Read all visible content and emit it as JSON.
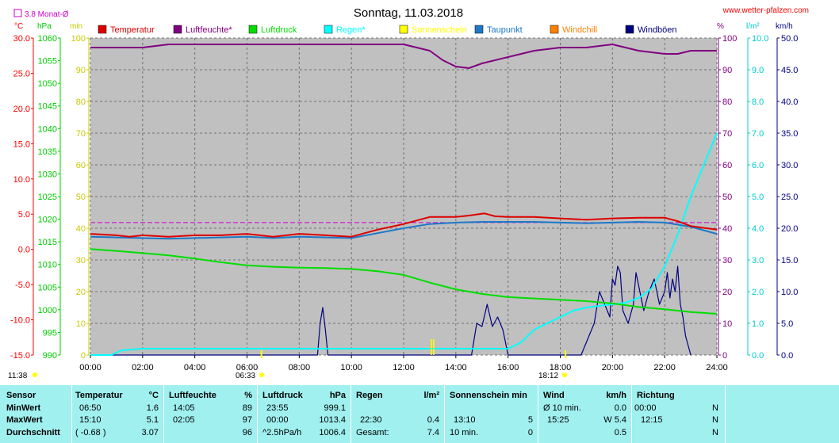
{
  "chart_data": {
    "type": "line",
    "title": "Sonntag, 11.03.2018",
    "source_label": "www.wetter-pfalzen.com",
    "monthly_avg_label": "3.8 Monat-Ø",
    "monthly_avg_temp": 3.8,
    "x_ticks": [
      "00:00",
      "02:00",
      "04:00",
      "06:00",
      "08:00",
      "10:00",
      "12:00",
      "14:00",
      "16:00",
      "18:00",
      "20:00",
      "22:00",
      "24:00"
    ],
    "sunrise": "06:33",
    "sunset": "18:12",
    "moonrise": "11:38",
    "axes": {
      "temp": {
        "unit": "°C",
        "range": [
          -15,
          30
        ],
        "ticks": [
          "30.0",
          "25.0",
          "20.0",
          "15.0",
          "10.0",
          "5.0",
          "0.0",
          "-5.0",
          "-10.0",
          "-15.0"
        ],
        "color": "#ff0000"
      },
      "pressure": {
        "unit": "hPa",
        "range": [
          990,
          1060
        ],
        "ticks": [
          "1060",
          "1055",
          "1050",
          "1045",
          "1040",
          "1035",
          "1030",
          "1025",
          "1020",
          "1015",
          "1010",
          "1005",
          "1000",
          "995",
          "990"
        ],
        "color": "#00cc00"
      },
      "minutes": {
        "unit": "min",
        "range": [
          0,
          100
        ],
        "ticks": [
          "100",
          "90",
          "80",
          "70",
          "60",
          "50",
          "40",
          "30",
          "20",
          "10",
          "0"
        ],
        "color": "#dddd00"
      },
      "humidity": {
        "unit": "%",
        "range": [
          0,
          100
        ],
        "ticks": [
          "100",
          "90",
          "80",
          "70",
          "60",
          "50",
          "40",
          "30",
          "20",
          "10",
          "0"
        ],
        "color": "#800080"
      },
      "rain": {
        "unit": "l/m²",
        "range": [
          0,
          10
        ],
        "ticks": [
          "10.0",
          "9.0",
          "8.0",
          "7.0",
          "6.0",
          "5.0",
          "4.0",
          "3.0",
          "2.0",
          "1.0",
          "0.0"
        ],
        "color": "#00cccc"
      },
      "wind": {
        "unit": "km/h",
        "range": [
          0,
          50
        ],
        "ticks": [
          "50.0",
          "45.0",
          "40.0",
          "35.0",
          "30.0",
          "25.0",
          "20.0",
          "15.0",
          "10.0",
          "5.0",
          "0.0"
        ],
        "color": "#000080"
      }
    },
    "legend": [
      {
        "name": "Temperatur",
        "color": "#dd0000"
      },
      {
        "name": "Luftfeuchte*",
        "color": "#800080"
      },
      {
        "name": "Luftdruck",
        "color": "#00dd00"
      },
      {
        "name": "Regen*",
        "color": "#00ffff"
      },
      {
        "name": "Sonnenschein",
        "color": "#ffff00"
      },
      {
        "name": "Taupunkt",
        "color": "#1e78c8"
      },
      {
        "name": "Windchill",
        "color": "#ff8000"
      },
      {
        "name": "Windböen",
        "color": "#000080"
      }
    ],
    "series": [
      {
        "name": "Temperatur",
        "axis": "temp",
        "color": "#dd0000",
        "points": [
          [
            0,
            2.2
          ],
          [
            1,
            2.0
          ],
          [
            1.5,
            1.8
          ],
          [
            2,
            2.0
          ],
          [
            3,
            1.8
          ],
          [
            4,
            2.0
          ],
          [
            5,
            2.0
          ],
          [
            6,
            2.2
          ],
          [
            7,
            1.8
          ],
          [
            8,
            2.2
          ],
          [
            9,
            2.0
          ],
          [
            10,
            1.8
          ],
          [
            11,
            2.8
          ],
          [
            12,
            3.6
          ],
          [
            13,
            4.6
          ],
          [
            14,
            4.6
          ],
          [
            14.5,
            4.8
          ],
          [
            15.1,
            5.1
          ],
          [
            15.5,
            4.7
          ],
          [
            16,
            4.6
          ],
          [
            17,
            4.6
          ],
          [
            18,
            4.4
          ],
          [
            19,
            4.2
          ],
          [
            20,
            4.4
          ],
          [
            21,
            4.5
          ],
          [
            22,
            4.5
          ],
          [
            22.5,
            4.0
          ],
          [
            23,
            3.3
          ],
          [
            24,
            2.8
          ]
        ]
      },
      {
        "name": "Taupunkt",
        "axis": "temp",
        "color": "#1e78c8",
        "points": [
          [
            0,
            1.8
          ],
          [
            1,
            1.7
          ],
          [
            2,
            1.6
          ],
          [
            3,
            1.5
          ],
          [
            4,
            1.6
          ],
          [
            5,
            1.7
          ],
          [
            6,
            1.8
          ],
          [
            7,
            1.6
          ],
          [
            8,
            1.8
          ],
          [
            9,
            1.7
          ],
          [
            10,
            1.6
          ],
          [
            11,
            2.3
          ],
          [
            12,
            3.0
          ],
          [
            13,
            3.6
          ],
          [
            14,
            3.8
          ],
          [
            15,
            3.9
          ],
          [
            16,
            3.9
          ],
          [
            17,
            3.9
          ],
          [
            18,
            3.8
          ],
          [
            19,
            3.7
          ],
          [
            20,
            3.8
          ],
          [
            21,
            3.9
          ],
          [
            22,
            3.8
          ],
          [
            23,
            3.2
          ],
          [
            24,
            2.2
          ]
        ]
      },
      {
        "name": "Luftfeuchte*",
        "axis": "humidity",
        "color": "#800080",
        "points": [
          [
            0,
            97
          ],
          [
            2,
            97
          ],
          [
            2.5,
            97.5
          ],
          [
            3,
            98
          ],
          [
            6,
            98
          ],
          [
            10,
            98
          ],
          [
            12,
            98
          ],
          [
            13,
            96
          ],
          [
            13.5,
            93
          ],
          [
            14,
            91
          ],
          [
            14.5,
            90.5
          ],
          [
            15,
            92
          ],
          [
            16,
            94
          ],
          [
            17,
            96
          ],
          [
            18,
            97
          ],
          [
            19,
            97
          ],
          [
            20,
            98
          ],
          [
            20.5,
            97
          ],
          [
            21,
            96
          ],
          [
            22,
            95
          ],
          [
            22.5,
            95
          ],
          [
            23,
            96
          ],
          [
            24,
            96
          ]
        ]
      },
      {
        "name": "Luftdruck",
        "axis": "pressure",
        "color": "#00dd00",
        "points": [
          [
            0,
            1013.4
          ],
          [
            1,
            1013
          ],
          [
            2,
            1012.5
          ],
          [
            3,
            1012
          ],
          [
            4,
            1011.3
          ],
          [
            5,
            1010.5
          ],
          [
            6,
            1009.8
          ],
          [
            7,
            1009.5
          ],
          [
            8,
            1009.3
          ],
          [
            9,
            1009.2
          ],
          [
            10,
            1009
          ],
          [
            11,
            1008.5
          ],
          [
            12,
            1007.7
          ],
          [
            13,
            1006
          ],
          [
            14,
            1004.5
          ],
          [
            15,
            1003.5
          ],
          [
            16,
            1002.8
          ],
          [
            17,
            1002.5
          ],
          [
            18,
            1002.2
          ],
          [
            19,
            1001.9
          ],
          [
            20,
            1001.4
          ],
          [
            21,
            1000.6
          ],
          [
            22,
            1000.1
          ],
          [
            23,
            999.5
          ],
          [
            24,
            999.1
          ]
        ]
      },
      {
        "name": "Regen*",
        "axis": "rain",
        "color": "#00ffff",
        "points": [
          [
            0,
            0
          ],
          [
            0.8,
            0
          ],
          [
            1.2,
            0.15
          ],
          [
            2,
            0.2
          ],
          [
            6,
            0.2
          ],
          [
            10,
            0.2
          ],
          [
            14,
            0.2
          ],
          [
            16,
            0.2
          ],
          [
            16.5,
            0.4
          ],
          [
            17,
            0.8
          ],
          [
            18,
            1.2
          ],
          [
            18.5,
            1.4
          ],
          [
            19,
            1.5
          ],
          [
            20,
            1.6
          ],
          [
            20.5,
            1.65
          ],
          [
            21,
            1.8
          ],
          [
            21.5,
            2.1
          ],
          [
            22,
            2.8
          ],
          [
            22.5,
            3.8
          ],
          [
            23,
            5.0
          ],
          [
            23.5,
            6.0
          ],
          [
            24,
            7.0
          ]
        ]
      },
      {
        "name": "Windböen",
        "axis": "wind",
        "color": "#000080",
        "points": [
          [
            0,
            0
          ],
          [
            8.7,
            0
          ],
          [
            8.8,
            5
          ],
          [
            8.9,
            7.5
          ],
          [
            9.0,
            4
          ],
          [
            9.1,
            0
          ],
          [
            14.6,
            0
          ],
          [
            14.8,
            5
          ],
          [
            15,
            4.5
          ],
          [
            15.2,
            8
          ],
          [
            15.4,
            4.5
          ],
          [
            15.6,
            6
          ],
          [
            15.8,
            4
          ],
          [
            16,
            0
          ],
          [
            16.3,
            0
          ],
          [
            18.8,
            0
          ],
          [
            19,
            2
          ],
          [
            19.3,
            5
          ],
          [
            19.5,
            10
          ],
          [
            19.7,
            8
          ],
          [
            19.9,
            6
          ],
          [
            20,
            12
          ],
          [
            20.1,
            11
          ],
          [
            20.2,
            14
          ],
          [
            20.3,
            13
          ],
          [
            20.4,
            7
          ],
          [
            20.6,
            5
          ],
          [
            20.8,
            8
          ],
          [
            20.9,
            13
          ],
          [
            21,
            11
          ],
          [
            21.2,
            7
          ],
          [
            21.4,
            10
          ],
          [
            21.6,
            12
          ],
          [
            21.8,
            8
          ],
          [
            22,
            10
          ],
          [
            22.1,
            13
          ],
          [
            22.2,
            9
          ],
          [
            22.3,
            12
          ],
          [
            22.4,
            10
          ],
          [
            22.5,
            14
          ],
          [
            22.6,
            8
          ],
          [
            22.7,
            6
          ],
          [
            22.8,
            3
          ],
          [
            23,
            0
          ]
        ]
      }
    ],
    "sun_markers_hours": [
      13.1
    ],
    "xlim": [
      0,
      24
    ]
  },
  "stats": {
    "headers": {
      "sensor": "Sensor",
      "temperature": "Temperatur",
      "temp_unit": "°C",
      "humidity": "Luftfeuchte",
      "humidity_unit": "%",
      "pressure": "Luftdruck",
      "pressure_unit": "hPa",
      "rain": "Regen",
      "rain_unit": "l/m²",
      "sunshine": "Sonnenschein min",
      "wind": "Wind",
      "wind_unit": "km/h",
      "direction": "Richtung"
    },
    "rows": [
      {
        "label": "MinWert",
        "temp_time": "06:50",
        "temp_val": "1.6",
        "hum_time": "14:05",
        "hum_val": "89",
        "pres_time": "23:55",
        "pres_val": "999.1",
        "rain_time": "",
        "rain_val": "",
        "sun_time": "",
        "sun_val": "",
        "wind_label": "Ø 10",
        "wind_sub": "min.",
        "wind_val": "0.0",
        "dir_time": "00:00",
        "dir_val": "N"
      },
      {
        "label": "MaxWert",
        "temp_time": "15:10",
        "temp_val": "5.1",
        "hum_time": "02:05",
        "hum_val": "97",
        "pres_time": "00:00",
        "pres_val": "1013.4",
        "rain_time": "22:30",
        "rain_val": "0.4",
        "sun_time": "13:10",
        "sun_val": "5",
        "wind_label": "15:25",
        "wind_sub": "",
        "wind_val": "W 5.4",
        "dir_time": "12:15",
        "dir_val": "N"
      },
      {
        "label": "Durchschnitt",
        "temp_time": "( -0.68 )",
        "temp_val": "3.07",
        "hum_time": "",
        "hum_val": "96",
        "pres_time": "^2.5hPa/h",
        "pres_val": "1006.4",
        "rain_time": "Gesamt:",
        "rain_val": "7.4",
        "sun_time": "10 min.",
        "sun_val": "0",
        "wind_label": "",
        "wind_sub": "",
        "wind_val": "0.5",
        "dir_time": "",
        "dir_val": "N"
      }
    ]
  }
}
